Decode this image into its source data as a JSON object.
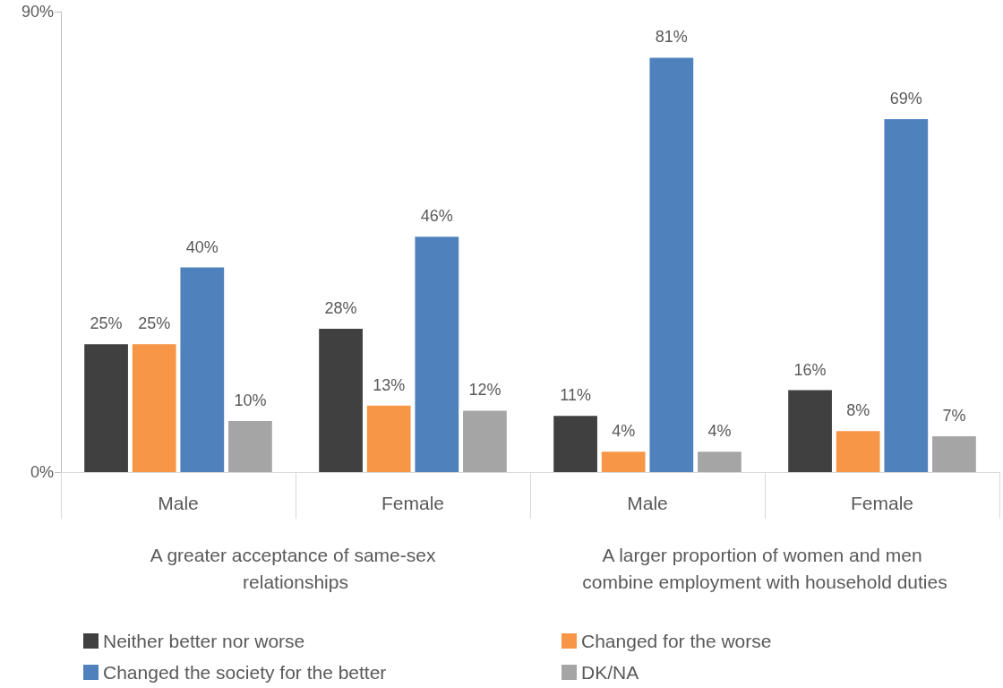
{
  "chart_data": {
    "type": "bar",
    "categories": [
      "Male",
      "Female",
      "Male",
      "Female"
    ],
    "annotations": [
      "A greater acceptance of same-sex relationships",
      "A larger proportion of women and men combine employment with household duties"
    ],
    "series": [
      {
        "name": "Neither better nor worse",
        "color": "#404040",
        "values": [
          25,
          28,
          11,
          16
        ],
        "value_labels": [
          "25%",
          "28%",
          "11%",
          "16%"
        ]
      },
      {
        "name": "Changed for the worse",
        "color": "#f79646",
        "values": [
          25,
          13,
          4,
          8
        ],
        "value_labels": [
          "25%",
          "13%",
          "4%",
          "8%"
        ]
      },
      {
        "name": "Changed the society for the better",
        "color": "#4f81bd",
        "values": [
          40,
          46,
          81,
          69
        ],
        "value_labels": [
          "40%",
          "46%",
          "81%",
          "69%"
        ]
      },
      {
        "name": "DK/NA",
        "color": "#a5a5a5",
        "values": [
          10,
          12,
          4,
          7
        ],
        "value_labels": [
          "10%",
          "12%",
          "4%",
          "7%"
        ]
      }
    ],
    "ylim": [
      0,
      90
    ],
    "yticks": [
      {
        "value": 0,
        "label": "0%"
      },
      {
        "value": 90,
        "label": "90%"
      }
    ],
    "grid": false,
    "legend": "bottom"
  }
}
